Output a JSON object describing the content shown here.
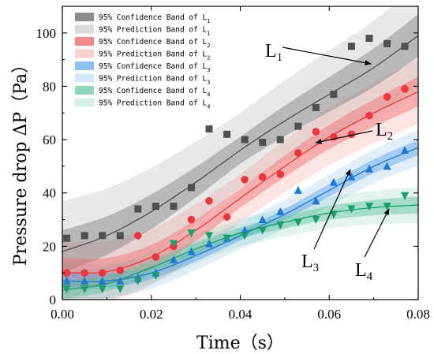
{
  "chart_data": {
    "type": "scatter",
    "xlabel": "Time（s）",
    "ylabel": "Pressure drop  ΔP（Pa）",
    "xlim": [
      0.0,
      0.08
    ],
    "ylim": [
      0,
      110
    ],
    "xticks": [
      0.0,
      0.02,
      0.04,
      0.06,
      0.08
    ],
    "xtick_labels": [
      "0.00",
      "0.02",
      "0.04",
      "0.06",
      "0.08"
    ],
    "yticks": [
      0,
      20,
      40,
      60,
      80,
      100
    ],
    "ytick_labels": [
      "0",
      "20",
      "40",
      "60",
      "80",
      "100"
    ],
    "grid": false,
    "legend_position": "top-left",
    "series": [
      {
        "name": "L1",
        "label_main": "L",
        "label_sub": "1",
        "marker": "square",
        "color": "#505050",
        "band_color": "#7f7f7f",
        "confidence_label": "95% Confidence Band of L",
        "prediction_label": "95% Prediction Band of L",
        "points": [
          [
            0.001,
            23
          ],
          [
            0.005,
            24
          ],
          [
            0.009,
            24
          ],
          [
            0.013,
            24
          ],
          [
            0.017,
            34
          ],
          [
            0.021,
            35
          ],
          [
            0.025,
            35
          ],
          [
            0.029,
            42
          ],
          [
            0.033,
            64
          ],
          [
            0.037,
            62
          ],
          [
            0.041,
            60
          ],
          [
            0.045,
            59
          ],
          [
            0.049,
            60
          ],
          [
            0.053,
            65
          ],
          [
            0.057,
            72
          ],
          [
            0.061,
            77
          ],
          [
            0.065,
            95
          ],
          [
            0.069,
            98
          ],
          [
            0.073,
            96
          ],
          [
            0.077,
            95
          ]
        ],
        "fit": [
          [
            0.0,
            18
          ],
          [
            0.01,
            24
          ],
          [
            0.02,
            33
          ],
          [
            0.03,
            44
          ],
          [
            0.04,
            56
          ],
          [
            0.05,
            67
          ],
          [
            0.06,
            77
          ],
          [
            0.07,
            87
          ],
          [
            0.08,
            99
          ]
        ],
        "conf_half_width": 5,
        "pred_half_width": 14
      },
      {
        "name": "L2",
        "label_main": "L",
        "label_sub": "2",
        "marker": "circle",
        "color": "#e8383d",
        "band_color": "#f06b6b",
        "confidence_label": "95% Confidence Band of L",
        "prediction_label": "95% Prediction Band of L",
        "points": [
          [
            0.001,
            10
          ],
          [
            0.005,
            10
          ],
          [
            0.009,
            10
          ],
          [
            0.013,
            11
          ],
          [
            0.017,
            24
          ],
          [
            0.021,
            16
          ],
          [
            0.025,
            20
          ],
          [
            0.029,
            30
          ],
          [
            0.033,
            37
          ],
          [
            0.037,
            31
          ],
          [
            0.041,
            45
          ],
          [
            0.045,
            46
          ],
          [
            0.049,
            47
          ],
          [
            0.053,
            55
          ],
          [
            0.057,
            63
          ],
          [
            0.061,
            61
          ],
          [
            0.065,
            62
          ],
          [
            0.069,
            69
          ],
          [
            0.073,
            76
          ],
          [
            0.077,
            79
          ]
        ],
        "fit": [
          [
            0.0,
            10
          ],
          [
            0.01,
            10.5
          ],
          [
            0.02,
            16
          ],
          [
            0.03,
            26
          ],
          [
            0.04,
            38
          ],
          [
            0.05,
            50
          ],
          [
            0.06,
            61
          ],
          [
            0.07,
            70
          ],
          [
            0.08,
            78
          ]
        ],
        "conf_half_width": 3.5,
        "pred_half_width": 9
      },
      {
        "name": "L3",
        "label_main": "L",
        "label_sub": "3",
        "marker": "triangle-up",
        "color": "#1f78d1",
        "band_color": "#5aa0e6",
        "confidence_label": "95% Confidence Band of L",
        "prediction_label": "95% Prediction Band of L",
        "points": [
          [
            0.001,
            7
          ],
          [
            0.005,
            7
          ],
          [
            0.009,
            7
          ],
          [
            0.013,
            7
          ],
          [
            0.017,
            8
          ],
          [
            0.021,
            10
          ],
          [
            0.025,
            15
          ],
          [
            0.029,
            18
          ],
          [
            0.033,
            21
          ],
          [
            0.037,
            23
          ],
          [
            0.041,
            26
          ],
          [
            0.045,
            30
          ],
          [
            0.049,
            33
          ],
          [
            0.053,
            41
          ],
          [
            0.057,
            37
          ],
          [
            0.061,
            44
          ],
          [
            0.065,
            46
          ],
          [
            0.069,
            49
          ],
          [
            0.073,
            50
          ],
          [
            0.077,
            56
          ]
        ],
        "fit": [
          [
            0.0,
            7
          ],
          [
            0.01,
            7
          ],
          [
            0.02,
            10
          ],
          [
            0.03,
            16.5
          ],
          [
            0.04,
            24
          ],
          [
            0.05,
            32
          ],
          [
            0.06,
            41
          ],
          [
            0.07,
            50
          ],
          [
            0.08,
            57
          ]
        ],
        "conf_half_width": 1.8,
        "pred_half_width": 5
      },
      {
        "name": "L4",
        "label_main": "L",
        "label_sub": "4",
        "marker": "triangle-down",
        "color": "#1a9c6b",
        "band_color": "#5cc49c",
        "confidence_label": "95% Confidence Band of L",
        "prediction_label": "95% Prediction Band of L",
        "points": [
          [
            0.001,
            4
          ],
          [
            0.005,
            4
          ],
          [
            0.009,
            4
          ],
          [
            0.013,
            4
          ],
          [
            0.017,
            7
          ],
          [
            0.021,
            9
          ],
          [
            0.025,
            21
          ],
          [
            0.029,
            25
          ],
          [
            0.033,
            24
          ],
          [
            0.037,
            23
          ],
          [
            0.041,
            24
          ],
          [
            0.045,
            26
          ],
          [
            0.049,
            28
          ],
          [
            0.053,
            29
          ],
          [
            0.057,
            30
          ],
          [
            0.061,
            32
          ],
          [
            0.065,
            34
          ],
          [
            0.069,
            35
          ],
          [
            0.073,
            35
          ],
          [
            0.077,
            39
          ]
        ],
        "fit": [
          [
            0.0,
            3.5
          ],
          [
            0.01,
            6
          ],
          [
            0.02,
            12
          ],
          [
            0.03,
            19
          ],
          [
            0.04,
            25
          ],
          [
            0.05,
            29
          ],
          [
            0.06,
            32.5
          ],
          [
            0.07,
            34.5
          ],
          [
            0.08,
            35.5
          ]
        ],
        "conf_half_width": 2,
        "pred_half_width": 5
      }
    ]
  },
  "legend": [
    {
      "text": "95% Confidence Band of L",
      "sub": "1",
      "swatch": "#8c8c8c"
    },
    {
      "text": "95% Prediction Band of L",
      "sub": "1",
      "swatch": "#d9d9d9"
    },
    {
      "text": "95% Confidence Band of L",
      "sub": "2",
      "swatch": "#f08a8a"
    },
    {
      "text": "95% Prediction Band of L",
      "sub": "2",
      "swatch": "#fbd0d0"
    },
    {
      "text": "95% Confidence Band of L",
      "sub": "3",
      "swatch": "#8fbfef"
    },
    {
      "text": "95% Prediction Band of L",
      "sub": "3",
      "swatch": "#d3e7f9"
    },
    {
      "text": "95% Confidence Band of L",
      "sub": "4",
      "swatch": "#8fd6b8"
    },
    {
      "text": "95% Prediction Band of L",
      "sub": "4",
      "swatch": "#d4efe3"
    }
  ]
}
